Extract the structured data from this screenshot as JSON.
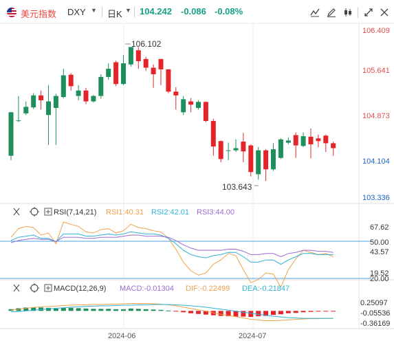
{
  "header": {
    "symbol_name": "美元指数",
    "symbol_code": "DXY",
    "period": "日K",
    "price": "104.242",
    "change": "-0.086",
    "change_pct": "-0.08%",
    "tools": [
      "wave-chart-icon",
      "draw-pen-icon",
      "candle-type-icon",
      "expand-icon",
      "close-icon"
    ]
  },
  "chart_data": [
    {
      "type": "candlestick",
      "price_ticks": [
        106.409,
        105.641,
        104.873,
        104.104,
        103.336
      ],
      "high_label": "106.102",
      "low_label": "103.643",
      "x_labels": [
        "2024-06",
        "2024-07"
      ],
      "candles": [
        [
          104.1,
          104.9,
          104.9,
          104.02
        ],
        [
          104.75,
          104.75,
          105.2,
          104.72
        ],
        [
          104.88,
          105.0,
          105.1,
          104.85
        ],
        [
          104.99,
          105.21,
          105.25,
          104.96
        ],
        [
          105.21,
          105.12,
          105.3,
          104.95
        ],
        [
          104.85,
          105.1,
          105.4,
          104.3
        ],
        [
          104.98,
          105.2,
          105.24,
          104.3
        ],
        [
          105.18,
          105.58,
          105.7,
          105.16
        ],
        [
          105.59,
          105.38,
          105.62,
          105.3
        ],
        [
          105.2,
          105.3,
          105.4,
          105.12
        ],
        [
          105.3,
          105.1,
          105.35,
          105.05
        ],
        [
          105.1,
          105.2,
          105.22,
          105.08
        ],
        [
          105.2,
          105.55,
          105.6,
          105.15
        ],
        [
          105.55,
          105.7,
          105.8,
          105.5
        ],
        [
          105.82,
          105.42,
          105.85,
          105.38
        ],
        [
          105.42,
          105.8,
          105.95,
          105.4
        ],
        [
          105.78,
          106.1,
          106.1,
          105.74
        ],
        [
          106.04,
          105.84,
          106.1,
          105.7
        ],
        [
          105.88,
          105.72,
          105.92,
          105.66
        ],
        [
          105.72,
          105.6,
          105.78,
          105.35
        ],
        [
          105.88,
          105.69,
          105.88,
          105.4
        ],
        [
          105.69,
          105.28,
          105.69,
          105.25
        ],
        [
          105.28,
          105.21,
          105.36,
          104.95
        ],
        [
          104.9,
          105.14,
          105.2,
          104.85
        ],
        [
          105.1,
          105.04,
          105.16,
          104.9
        ],
        [
          104.98,
          105.09,
          105.12,
          104.95
        ],
        [
          105.09,
          104.74,
          105.1,
          104.72
        ],
        [
          104.74,
          104.27,
          104.78,
          104.1
        ],
        [
          104.37,
          104.04,
          104.38,
          103.98
        ],
        [
          104.2,
          104.2,
          104.34,
          104.02
        ],
        [
          104.2,
          104.24,
          104.4,
          104.17
        ],
        [
          104.36,
          104.18,
          104.52,
          103.98
        ],
        [
          104.29,
          103.8,
          104.31,
          103.72
        ],
        [
          103.76,
          104.2,
          104.26,
          103.66
        ],
        [
          104.2,
          103.85,
          104.22,
          103.64
        ],
        [
          103.85,
          104.22,
          104.33,
          103.82
        ],
        [
          104.06,
          104.4,
          104.42,
          104.04
        ],
        [
          104.34,
          104.38,
          104.44,
          104.31
        ],
        [
          104.48,
          104.29,
          104.53,
          104.06
        ],
        [
          104.28,
          104.46,
          104.53,
          104.26
        ],
        [
          104.45,
          104.31,
          104.6,
          104.05
        ],
        [
          104.42,
          104.37,
          104.49,
          104.26
        ],
        [
          104.47,
          104.33,
          104.49,
          104.17
        ],
        [
          104.33,
          104.24,
          104.36,
          104.1
        ]
      ]
    },
    {
      "type": "line",
      "label": "RSI(7,14,21)",
      "series_labels": [
        "RSI1:40.31",
        "RSI2:42.01",
        "RSI3:44.00"
      ],
      "ticks": [
        "67.62",
        "50.00",
        "43.57",
        "19.52",
        "20.00"
      ],
      "series": [
        {
          "name": "RSI1",
          "color": "#f0a04b",
          "values": [
            58,
            66,
            68,
            67,
            60,
            62,
            52,
            72,
            70,
            68,
            63,
            62,
            65,
            66,
            62,
            64,
            70,
            67,
            66,
            64,
            63,
            57,
            47,
            35,
            27,
            23,
            25,
            33,
            37,
            43,
            41,
            28,
            16,
            19,
            25,
            24,
            12,
            28,
            38,
            46,
            44,
            42,
            43,
            40
          ]
        },
        {
          "name": "RSI2",
          "color": "#2db1d4",
          "values": [
            55,
            58,
            59,
            60,
            57,
            57,
            54,
            61,
            61,
            61,
            59,
            59,
            60,
            61,
            60,
            61,
            63,
            62,
            61,
            61,
            60,
            57,
            52,
            46,
            42,
            40,
            39,
            41,
            42,
            44,
            44,
            40,
            35,
            35,
            37,
            37,
            33,
            37,
            40,
            43,
            43,
            42,
            42,
            42
          ]
        },
        {
          "name": "RSI3",
          "color": "#9a6ad1",
          "values": [
            53,
            55,
            56,
            57,
            56,
            56,
            54,
            58,
            58,
            58,
            57,
            57,
            58,
            58,
            58,
            59,
            60,
            60,
            59,
            59,
            59,
            58,
            55,
            51,
            48,
            46,
            46,
            46,
            46,
            47,
            47,
            45,
            42,
            42,
            43,
            43,
            40,
            43,
            44,
            46,
            46,
            45,
            45,
            44
          ]
        }
      ]
    },
    {
      "type": "bar",
      "label": "MACD(12,26,9)",
      "series_labels": [
        "MACD:-0.01304",
        "DIF:-0.22499",
        "DEA:-0.21847"
      ],
      "ticks": [
        "0.25097",
        "-0.05536",
        "-0.36169"
      ],
      "histogram": [
        0.05,
        0.08,
        0.1,
        0.11,
        0.1,
        0.09,
        0.07,
        0.1,
        0.09,
        0.08,
        0.07,
        0.06,
        0.06,
        0.06,
        0.05,
        0.05,
        0.07,
        0.06,
        0.05,
        0.04,
        0.03,
        0.01,
        -0.02,
        -0.04,
        -0.07,
        -0.09,
        -0.11,
        -0.13,
        -0.15,
        -0.16,
        -0.17,
        -0.17,
        -0.18,
        -0.16,
        -0.15,
        -0.12,
        -0.1,
        -0.07,
        -0.06,
        -0.04,
        -0.03,
        -0.02,
        -0.01,
        -0.013
      ],
      "dif": [
        0.02,
        0.05,
        0.08,
        0.1,
        0.12,
        0.13,
        0.14,
        0.16,
        0.17,
        0.18,
        0.18,
        0.19,
        0.19,
        0.2,
        0.2,
        0.21,
        0.22,
        0.22,
        0.22,
        0.21,
        0.2,
        0.18,
        0.15,
        0.11,
        0.07,
        0.03,
        -0.01,
        -0.06,
        -0.1,
        -0.14,
        -0.17,
        -0.21,
        -0.25,
        -0.27,
        -0.29,
        -0.29,
        -0.28,
        -0.27,
        -0.25,
        -0.24,
        -0.23,
        -0.23,
        -0.22,
        -0.225
      ],
      "dea": [
        -0.03,
        -0.02,
        0.0,
        0.02,
        0.04,
        0.06,
        0.08,
        0.09,
        0.11,
        0.12,
        0.13,
        0.14,
        0.15,
        0.15,
        0.16,
        0.17,
        0.17,
        0.18,
        0.18,
        0.19,
        0.19,
        0.19,
        0.18,
        0.17,
        0.15,
        0.13,
        0.11,
        0.08,
        0.05,
        0.02,
        -0.01,
        -0.04,
        -0.07,
        -0.1,
        -0.13,
        -0.16,
        -0.18,
        -0.2,
        -0.21,
        -0.22,
        -0.22,
        -0.22,
        -0.22,
        -0.218
      ]
    }
  ]
}
